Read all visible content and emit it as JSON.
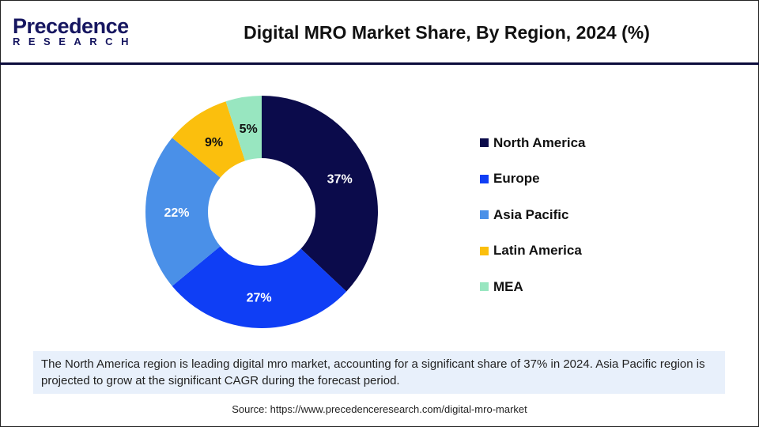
{
  "logo": {
    "line1": "Precedence",
    "line2": "RESEARCH"
  },
  "chart_data": {
    "type": "pie",
    "title": "Digital MRO Market Share, By Region, 2024 (%)",
    "donut": true,
    "categories": [
      "North America",
      "Europe",
      "Asia Pacific",
      "Latin America",
      "MEA"
    ],
    "values": [
      37,
      27,
      22,
      9,
      5
    ],
    "labels": [
      "37%",
      "27%",
      "22%",
      "9%",
      "5%"
    ],
    "colors": [
      "#0b0b4b",
      "#0f3ef5",
      "#4a90e8",
      "#fbbf0d",
      "#98e6c0"
    ],
    "label_colors": [
      "#ffffff",
      "#ffffff",
      "#ffffff",
      "#111111",
      "#111111"
    ],
    "legend_position": "right"
  },
  "note": "The North America region is leading digital mro market, accounting for a significant share of 37% in 2024. Asia Pacific region is projected to grow at the significant CAGR during the forecast period.",
  "source": "Source: https://www.precedenceresearch.com/digital-mro-market"
}
